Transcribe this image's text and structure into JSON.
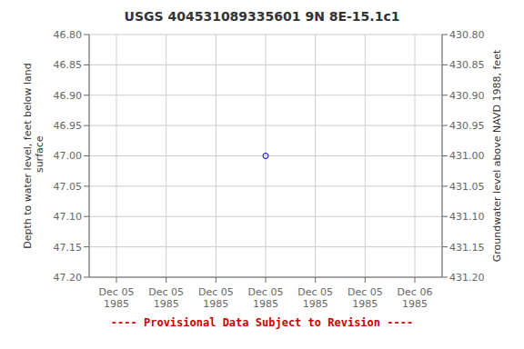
{
  "chart_data": {
    "type": "scatter",
    "title": "USGS 404531089335601  9N 8E-15.1c1",
    "ylabel": "Depth to water level, feet below land\n surface",
    "y2label": "Groundwater level above NAVD 1988, feet",
    "annotations": [
      {
        "text": "---- Provisional Data Subject to Revision ----",
        "color": "#cc0000"
      }
    ],
    "categories": [
      "Dec 05\n1985",
      "Dec 05\n1985",
      "Dec 05\n1985",
      "Dec 05\n1985",
      "Dec 05\n1985",
      "Dec 05\n1985",
      "Dec 06\n1985"
    ],
    "values": [
      null,
      null,
      null,
      47.0,
      null,
      null,
      null
    ],
    "color": "#0000bb",
    "marker": "open_circle",
    "ylim": [
      47.2,
      46.8
    ],
    "yticks": [
      {
        "value": 46.8,
        "label": "46.80"
      },
      {
        "value": 46.85,
        "label": "46.85"
      },
      {
        "value": 46.9,
        "label": "46.90"
      },
      {
        "value": 46.95,
        "label": "46.95"
      },
      {
        "value": 47.0,
        "label": "47.00"
      },
      {
        "value": 47.05,
        "label": "47.05"
      },
      {
        "value": 47.1,
        "label": "47.10"
      },
      {
        "value": 47.15,
        "label": "47.15"
      },
      {
        "value": 47.2,
        "label": "47.20"
      }
    ],
    "y2lim": [
      431.2,
      430.8
    ],
    "y2ticks": [
      {
        "value": 431.2,
        "label": "431.20"
      },
      {
        "value": 431.15,
        "label": "431.15"
      },
      {
        "value": 431.1,
        "label": "431.10"
      },
      {
        "value": 431.05,
        "label": "431.05"
      },
      {
        "value": 431.0,
        "label": "431.00"
      },
      {
        "value": 430.95,
        "label": "430.95"
      },
      {
        "value": 430.9,
        "label": "430.90"
      },
      {
        "value": 430.85,
        "label": "430.85"
      },
      {
        "value": 430.8,
        "label": "430.80"
      }
    ],
    "grid": true
  }
}
